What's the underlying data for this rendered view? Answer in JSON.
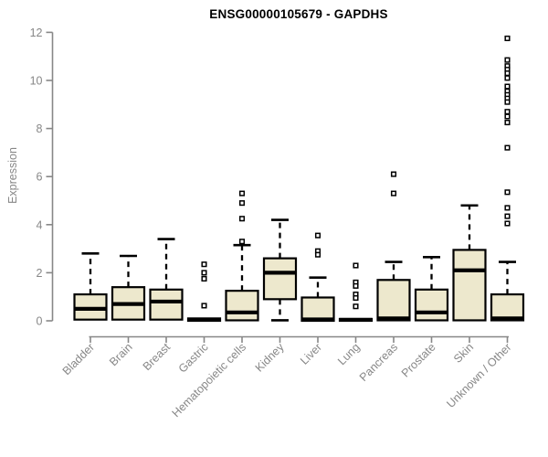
{
  "title": "ENSG00000105679 - GAPDHS",
  "chart_data": {
    "type": "box",
    "title": "ENSG00000105679 - GAPDHS",
    "xlabel": "",
    "ylabel": "Expression",
    "ylim": [
      0,
      12
    ],
    "yticks": [
      0,
      2,
      4,
      6,
      8,
      10,
      12
    ],
    "grid": false,
    "legend": "none",
    "axis_color": "#878787",
    "box_fill": "#EDE8CD",
    "box_stroke": "#000000",
    "outlier_marker": "open-square",
    "categories": [
      "Bladder",
      "Brain",
      "Breast",
      "Gastric",
      "Hematopoietic cells",
      "Kidney",
      "Liver",
      "Lung",
      "Pancreas",
      "Prostate",
      "Skin",
      "Unknown / Other"
    ],
    "boxes": [
      {
        "label": "Bladder",
        "q1": 0.05,
        "median": 0.5,
        "q3": 1.1,
        "whisker_low": null,
        "whisker_high": 2.8,
        "outliers": []
      },
      {
        "label": "Brain",
        "q1": 0.05,
        "median": 0.7,
        "q3": 1.4,
        "whisker_low": null,
        "whisker_high": 2.7,
        "outliers": []
      },
      {
        "label": "Breast",
        "q1": 0.05,
        "median": 0.8,
        "q3": 1.3,
        "whisker_low": null,
        "whisker_high": 3.4,
        "outliers": []
      },
      {
        "label": "Gastric",
        "q1": 0.0,
        "median": 0.05,
        "q3": 0.1,
        "whisker_low": null,
        "whisker_high": null,
        "outliers": [
          2.35,
          2.0,
          1.75,
          0.63
        ]
      },
      {
        "label": "Hematopoietic cells",
        "q1": 0.02,
        "median": 0.35,
        "q3": 1.25,
        "whisker_low": null,
        "whisker_high": 3.15,
        "outliers": [
          5.3,
          4.9,
          4.25,
          3.3
        ]
      },
      {
        "label": "Kidney",
        "q1": 0.9,
        "median": 2.0,
        "q3": 2.6,
        "whisker_low": 0.02,
        "whisker_high": 4.2,
        "outliers": []
      },
      {
        "label": "Liver",
        "q1": 0.0,
        "median": 0.06,
        "q3": 0.97,
        "whisker_low": null,
        "whisker_high": 1.8,
        "outliers": [
          3.55,
          2.9,
          2.75
        ]
      },
      {
        "label": "Lung",
        "q1": 0.0,
        "median": 0.04,
        "q3": 0.08,
        "whisker_low": null,
        "whisker_high": null,
        "outliers": [
          2.3,
          1.6,
          1.45,
          1.1,
          0.95,
          0.6
        ]
      },
      {
        "label": "Pancreas",
        "q1": 0.02,
        "median": 0.1,
        "q3": 1.7,
        "whisker_low": null,
        "whisker_high": 2.45,
        "outliers": [
          6.1,
          5.3
        ]
      },
      {
        "label": "Prostate",
        "q1": 0.02,
        "median": 0.35,
        "q3": 1.3,
        "whisker_low": null,
        "whisker_high": 2.65,
        "outliers": []
      },
      {
        "label": "Skin",
        "q1": 0.02,
        "median": 2.1,
        "q3": 2.95,
        "whisker_low": null,
        "whisker_high": 4.8,
        "outliers": []
      },
      {
        "label": "Unknown / Other",
        "q1": 0.02,
        "median": 0.1,
        "q3": 1.1,
        "whisker_low": null,
        "whisker_high": 2.45,
        "outliers": [
          11.75,
          10.85,
          10.6,
          10.45,
          10.3,
          10.1,
          9.75,
          9.55,
          9.4,
          9.25,
          9.1,
          8.7,
          8.5,
          8.25,
          7.2,
          5.35,
          4.7,
          4.35,
          4.05
        ]
      }
    ]
  }
}
